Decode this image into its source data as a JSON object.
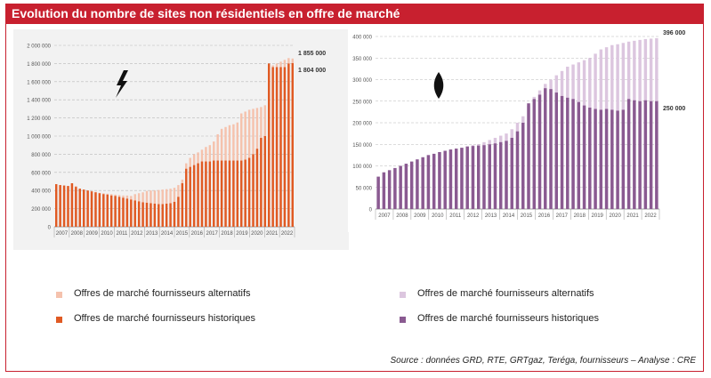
{
  "title": "Evolution du nombre de sites non résidentiels en offre de marché",
  "source": "Source : données GRD, RTE, GRTgaz, Teréga, fournisseurs – Analyse : CRE",
  "colors": {
    "frame": "#c8202f",
    "elec_alt": "#f5c2ad",
    "elec_hist": "#e05a23",
    "gas_alt": "#dcc6df",
    "gas_hist": "#8a5a91"
  },
  "icons": {
    "left": "lightning-bolt-icon",
    "right": "gas-flame-icon"
  },
  "chart_data": [
    {
      "type": "bar",
      "stacked": false,
      "ylim": [
        0,
        2000000
      ],
      "yticks": [
        "0",
        "200 000",
        "400 000",
        "600 000",
        "800 000",
        "1 000 000",
        "1 200 000",
        "1 400 000",
        "1 600 000",
        "1 800 000",
        "2 000 000"
      ],
      "xlabels": [
        "2007",
        "2008",
        "2009",
        "2010",
        "2011",
        "2012",
        "2013",
        "2014",
        "2015",
        "2016",
        "2017",
        "2018",
        "2019",
        "2020",
        "2021",
        "2022"
      ],
      "annotations": [
        {
          "text": "1 855 000",
          "value": 1855000
        },
        {
          "text": "1 804 000",
          "value": 1804000
        }
      ],
      "series": [
        {
          "name": "Offres de marché fournisseurs alternatifs",
          "values": [
            470000,
            460000,
            455000,
            450000,
            480000,
            450000,
            420000,
            410000,
            400000,
            395000,
            385000,
            375000,
            370000,
            365000,
            360000,
            355000,
            350000,
            345000,
            345000,
            340000,
            360000,
            370000,
            380000,
            395000,
            400000,
            400000,
            405000,
            410000,
            415000,
            420000,
            430000,
            460000,
            520000,
            700000,
            760000,
            800000,
            820000,
            850000,
            880000,
            900000,
            940000,
            1020000,
            1080000,
            1100000,
            1120000,
            1130000,
            1150000,
            1250000,
            1270000,
            1290000,
            1300000,
            1310000,
            1320000,
            1340000,
            1360000,
            1780000,
            1800000,
            1820000,
            1840000,
            1860000,
            1855000
          ]
        },
        {
          "name": "Offres de marché fournisseurs historiques",
          "values": [
            470000,
            460000,
            455000,
            450000,
            480000,
            440000,
            420000,
            410000,
            400000,
            390000,
            380000,
            370000,
            360000,
            355000,
            345000,
            340000,
            330000,
            320000,
            310000,
            300000,
            290000,
            280000,
            270000,
            265000,
            260000,
            255000,
            250000,
            250000,
            255000,
            260000,
            275000,
            330000,
            480000,
            640000,
            660000,
            680000,
            700000,
            720000,
            720000,
            720000,
            730000,
            730000,
            730000,
            730000,
            730000,
            730000,
            730000,
            730000,
            740000,
            760000,
            800000,
            860000,
            980000,
            1000000,
            1800000,
            1760000,
            1760000,
            1760000,
            1760000,
            1800000,
            1804000
          ]
        }
      ]
    },
    {
      "type": "bar",
      "stacked": false,
      "ylim": [
        0,
        400000
      ],
      "yticks": [
        "0",
        "50 000",
        "100 000",
        "150 000",
        "200 000",
        "250 000",
        "300 000",
        "350 000",
        "400 000"
      ],
      "xlabels": [
        "2007",
        "2008",
        "2009",
        "2010",
        "2011",
        "2012",
        "2013",
        "2014",
        "2015",
        "2016",
        "2017",
        "2018",
        "2019",
        "2020",
        "2021",
        "2022"
      ],
      "annotations": [
        {
          "text": "396 000",
          "value": 396000
        },
        {
          "text": "250 000",
          "value": 250000
        }
      ],
      "series": [
        {
          "name": "Offres de marché fournisseurs alternatifs",
          "values": [
            75000,
            85000,
            90000,
            95000,
            100000,
            105000,
            110000,
            115000,
            120000,
            125000,
            128000,
            132000,
            135000,
            138000,
            140000,
            142000,
            145000,
            148000,
            150000,
            155000,
            160000,
            165000,
            170000,
            175000,
            185000,
            200000,
            215000,
            240000,
            260000,
            275000,
            290000,
            300000,
            310000,
            320000,
            330000,
            335000,
            340000,
            345000,
            350000,
            360000,
            370000,
            375000,
            380000,
            382000,
            385000,
            388000,
            390000,
            392000,
            394000,
            395000,
            396000
          ]
        },
        {
          "name": "Offres de marché fournisseurs historiques",
          "values": [
            75000,
            85000,
            90000,
            95000,
            100000,
            105000,
            110000,
            115000,
            120000,
            125000,
            128000,
            132000,
            135000,
            138000,
            140000,
            142000,
            145000,
            146000,
            147000,
            148000,
            150000,
            152000,
            155000,
            158000,
            165000,
            180000,
            200000,
            245000,
            255000,
            265000,
            280000,
            278000,
            270000,
            262000,
            258000,
            255000,
            248000,
            240000,
            235000,
            232000,
            230000,
            232000,
            230000,
            228000,
            230000,
            255000,
            252000,
            250000,
            252000,
            250000,
            250000
          ]
        }
      ]
    }
  ],
  "legend_left": [
    {
      "label": "Offres de marché fournisseurs alternatifs"
    },
    {
      "label": "Offres de marché fournisseurs historiques"
    }
  ],
  "legend_right": [
    {
      "label": "Offres de marché fournisseurs alternatifs"
    },
    {
      "label": "Offres de marché fournisseurs historiques"
    }
  ]
}
